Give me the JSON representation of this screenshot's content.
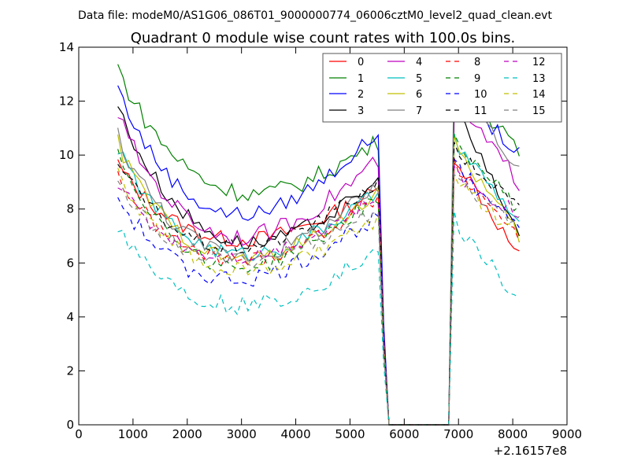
{
  "chart_data": {
    "type": "line",
    "suptitle": "Data file: modeM0/AS1G06_086T01_9000000774_06006cztM0_level2_quad_clean.evt",
    "title": "Quadrant 0 module wise count rates with 100.0s bins.",
    "xlabel": "",
    "ylabel": "",
    "x_offset_label": "+2.16157e8",
    "xlim": [
      0,
      9000
    ],
    "ylim": [
      0,
      14
    ],
    "x_ticks": [
      0,
      1000,
      2000,
      3000,
      4000,
      5000,
      6000,
      7000,
      8000,
      9000
    ],
    "y_ticks": [
      0,
      2,
      4,
      6,
      8,
      10,
      12,
      14
    ],
    "legend": {
      "placement": "top-right",
      "ncol": 4
    },
    "segments": [
      {
        "start": 720,
        "step": 100,
        "count": 49
      },
      {
        "start": 6920,
        "step": 100,
        "count": 13
      }
    ],
    "gap": {
      "x": [
        5620,
        5720,
        5820,
        6820
      ],
      "y": [
        3.0,
        0,
        0,
        0
      ]
    },
    "series": [
      {
        "name": "0",
        "color": "#ff0000",
        "style": "solid",
        "base": 9.7,
        "dip": 2.4,
        "end": 8.7,
        "p2": [
          10.0,
          6.2
        ],
        "noise": 0.3
      },
      {
        "name": "1",
        "color": "#008000",
        "style": "solid",
        "base": 13.3,
        "dip": 3.4,
        "end": 10.5,
        "p2": [
          13.0,
          10.0
        ],
        "noise": 0.35
      },
      {
        "name": "2",
        "color": "#0000ff",
        "style": "solid",
        "base": 12.6,
        "dip": 4.0,
        "end": 10.8,
        "p2": [
          12.5,
          10.0
        ],
        "noise": 0.3
      },
      {
        "name": "3",
        "color": "#000000",
        "style": "solid",
        "base": 11.9,
        "dip": 3.8,
        "end": 9.0,
        "p2": [
          11.8,
          7.0
        ],
        "noise": 0.3
      },
      {
        "name": "4",
        "color": "#bf00bf",
        "style": "solid",
        "base": 11.6,
        "dip": 3.8,
        "end": 9.8,
        "p2": [
          12.0,
          9.0
        ],
        "noise": 0.35
      },
      {
        "name": "5",
        "color": "#00bfbf",
        "style": "solid",
        "base": 10.3,
        "dip": 3.2,
        "end": 8.6,
        "p2": [
          10.5,
          7.5
        ],
        "noise": 0.3
      },
      {
        "name": "6",
        "color": "#bfbf00",
        "style": "solid",
        "base": 10.5,
        "dip": 3.5,
        "end": 8.6,
        "p2": [
          10.4,
          7.0
        ],
        "noise": 0.3
      },
      {
        "name": "7",
        "color": "#808080",
        "style": "solid",
        "base": 10.8,
        "dip": 3.6,
        "end": 8.8,
        "p2": [
          13.0,
          9.5
        ],
        "noise": 0.35
      },
      {
        "name": "8",
        "color": "#ff0000",
        "style": "dashed",
        "base": 9.3,
        "dip": 2.8,
        "end": 8.4,
        "p2": [
          9.6,
          7.0
        ],
        "noise": 0.3
      },
      {
        "name": "9",
        "color": "#008000",
        "style": "dashed",
        "base": 10.2,
        "dip": 3.6,
        "end": 8.5,
        "p2": [
          10.5,
          8.0
        ],
        "noise": 0.3
      },
      {
        "name": "10",
        "color": "#0000ff",
        "style": "dashed",
        "base": 8.5,
        "dip": 2.8,
        "end": 7.8,
        "p2": [
          9.5,
          7.5
        ],
        "noise": 0.35
      },
      {
        "name": "11",
        "color": "#000000",
        "style": "dashed",
        "base": 9.8,
        "dip": 2.9,
        "end": 9.0,
        "p2": [
          10.2,
          8.0
        ],
        "noise": 0.3
      },
      {
        "name": "12",
        "color": "#bf00bf",
        "style": "dashed",
        "base": 9.0,
        "dip": 2.5,
        "end": 8.4,
        "p2": [
          9.3,
          7.8
        ],
        "noise": 0.3
      },
      {
        "name": "13",
        "color": "#00bfbf",
        "style": "dashed",
        "base": 7.5,
        "dip": 2.6,
        "end": 6.4,
        "p2": [
          7.6,
          4.5
        ],
        "noise": 0.35
      },
      {
        "name": "14",
        "color": "#bfbf00",
        "style": "dashed",
        "base": 9.3,
        "dip": 2.8,
        "end": 7.6,
        "p2": [
          9.0,
          7.0
        ],
        "noise": 0.3
      },
      {
        "name": "15",
        "color": "#808080",
        "style": "dashed",
        "base": 8.9,
        "dip": 2.4,
        "end": 8.0,
        "p2": [
          9.0,
          7.5
        ],
        "noise": 0.3
      }
    ]
  }
}
